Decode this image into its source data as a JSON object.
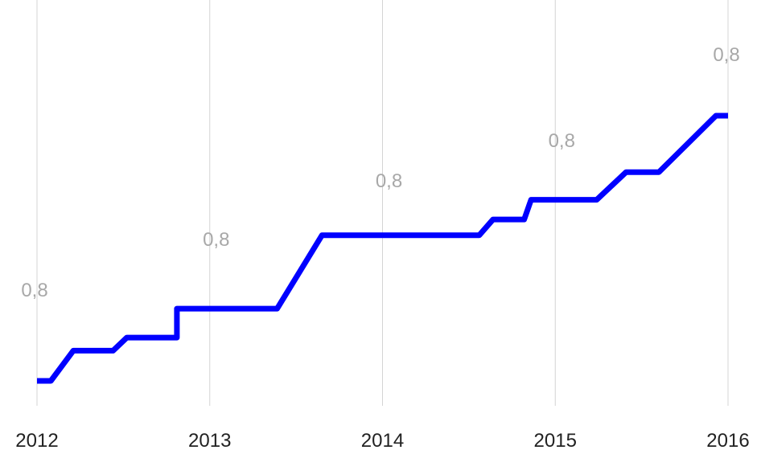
{
  "chart_data": {
    "type": "line",
    "title": "",
    "xlabel": "",
    "ylabel": "",
    "x_ticks": [
      "2012",
      "2013",
      "2014",
      "2015",
      "2016"
    ],
    "xlim": [
      2012.0,
      2016.0
    ],
    "ylim": [
      0.69,
      0.92
    ],
    "grid": "vertical",
    "color": "#0000ff",
    "series": [
      {
        "x": [
          2012.0,
          2012.08,
          2012.21,
          2012.44,
          2012.52,
          2012.81,
          2012.81,
          2013.39,
          2013.65,
          2014.56,
          2014.64,
          2014.82,
          2014.86,
          2015.24,
          2015.41,
          2015.6,
          2015.93,
          2016.0
        ],
        "values": [
          0.72,
          0.72,
          0.743,
          0.743,
          0.753,
          0.753,
          0.775,
          0.775,
          0.831,
          0.831,
          0.843,
          0.843,
          0.858,
          0.858,
          0.879,
          0.879,
          0.922,
          0.922
        ]
      }
    ],
    "data_labels": [
      {
        "x": 2012.0,
        "y": 0.8,
        "text": "0,8"
      },
      {
        "x": 2013.0,
        "y": 0.8,
        "text": "0,8"
      },
      {
        "x": 2014.0,
        "y": 0.8,
        "text": "0,8"
      },
      {
        "x": 2015.0,
        "y": 0.8,
        "text": "0,8"
      },
      {
        "x": 2016.0,
        "y": 0.8,
        "text": "0,8"
      }
    ]
  }
}
